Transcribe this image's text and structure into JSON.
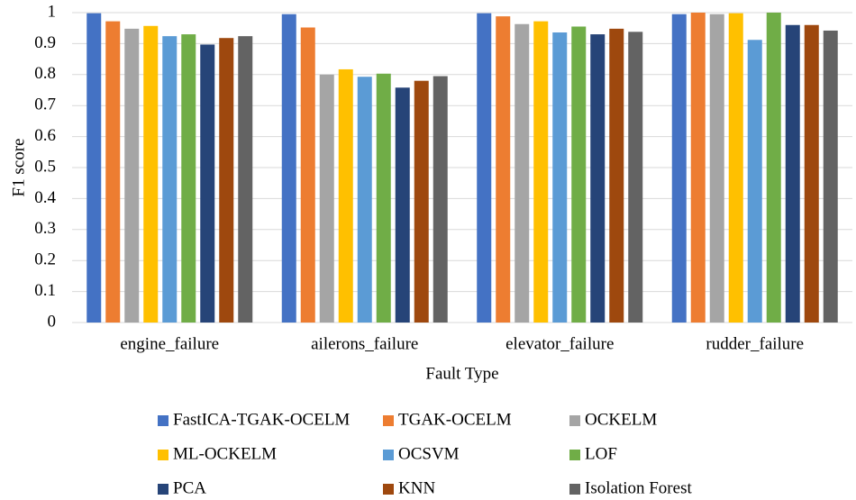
{
  "chart_data": {
    "type": "bar",
    "x_label": "Fault Type",
    "y_label": "F1 score",
    "categories": [
      "engine_failure",
      "ailerons_failure",
      "elevator_failure",
      "rudder_failure"
    ],
    "series": [
      {
        "name": "FastICA-TGAK-OCELM",
        "color": "#4472c4",
        "values": [
          0.998,
          0.995,
          0.998,
          0.995
        ]
      },
      {
        "name": "TGAK-OCELM",
        "color": "#ed7d31",
        "values": [
          0.972,
          0.952,
          0.988,
          1.0
        ]
      },
      {
        "name": "OCKELM",
        "color": "#a5a5a5",
        "values": [
          0.948,
          0.8,
          0.963,
          0.995
        ]
      },
      {
        "name": "ML-OCKELM",
        "color": "#ffc000",
        "values": [
          0.957,
          0.817,
          0.972,
          0.998
        ]
      },
      {
        "name": "OCSVM",
        "color": "#5b9bd5",
        "values": [
          0.924,
          0.793,
          0.936,
          0.912
        ]
      },
      {
        "name": "LOF",
        "color": "#70ad47",
        "values": [
          0.93,
          0.803,
          0.955,
          1.0
        ]
      },
      {
        "name": "PCA",
        "color": "#264478",
        "values": [
          0.897,
          0.758,
          0.93,
          0.96
        ]
      },
      {
        "name": "KNN",
        "color": "#9e480e",
        "values": [
          0.918,
          0.78,
          0.948,
          0.96
        ]
      },
      {
        "name": "Isolation Forest",
        "color": "#636363",
        "values": [
          0.924,
          0.795,
          0.938,
          0.942
        ]
      }
    ],
    "ylim": [
      0,
      1
    ],
    "yticks": [
      0,
      0.1,
      0.2,
      0.3,
      0.4,
      0.5,
      0.6,
      0.7,
      0.8,
      0.9,
      1
    ],
    "grid": true,
    "legend": "bottom"
  }
}
